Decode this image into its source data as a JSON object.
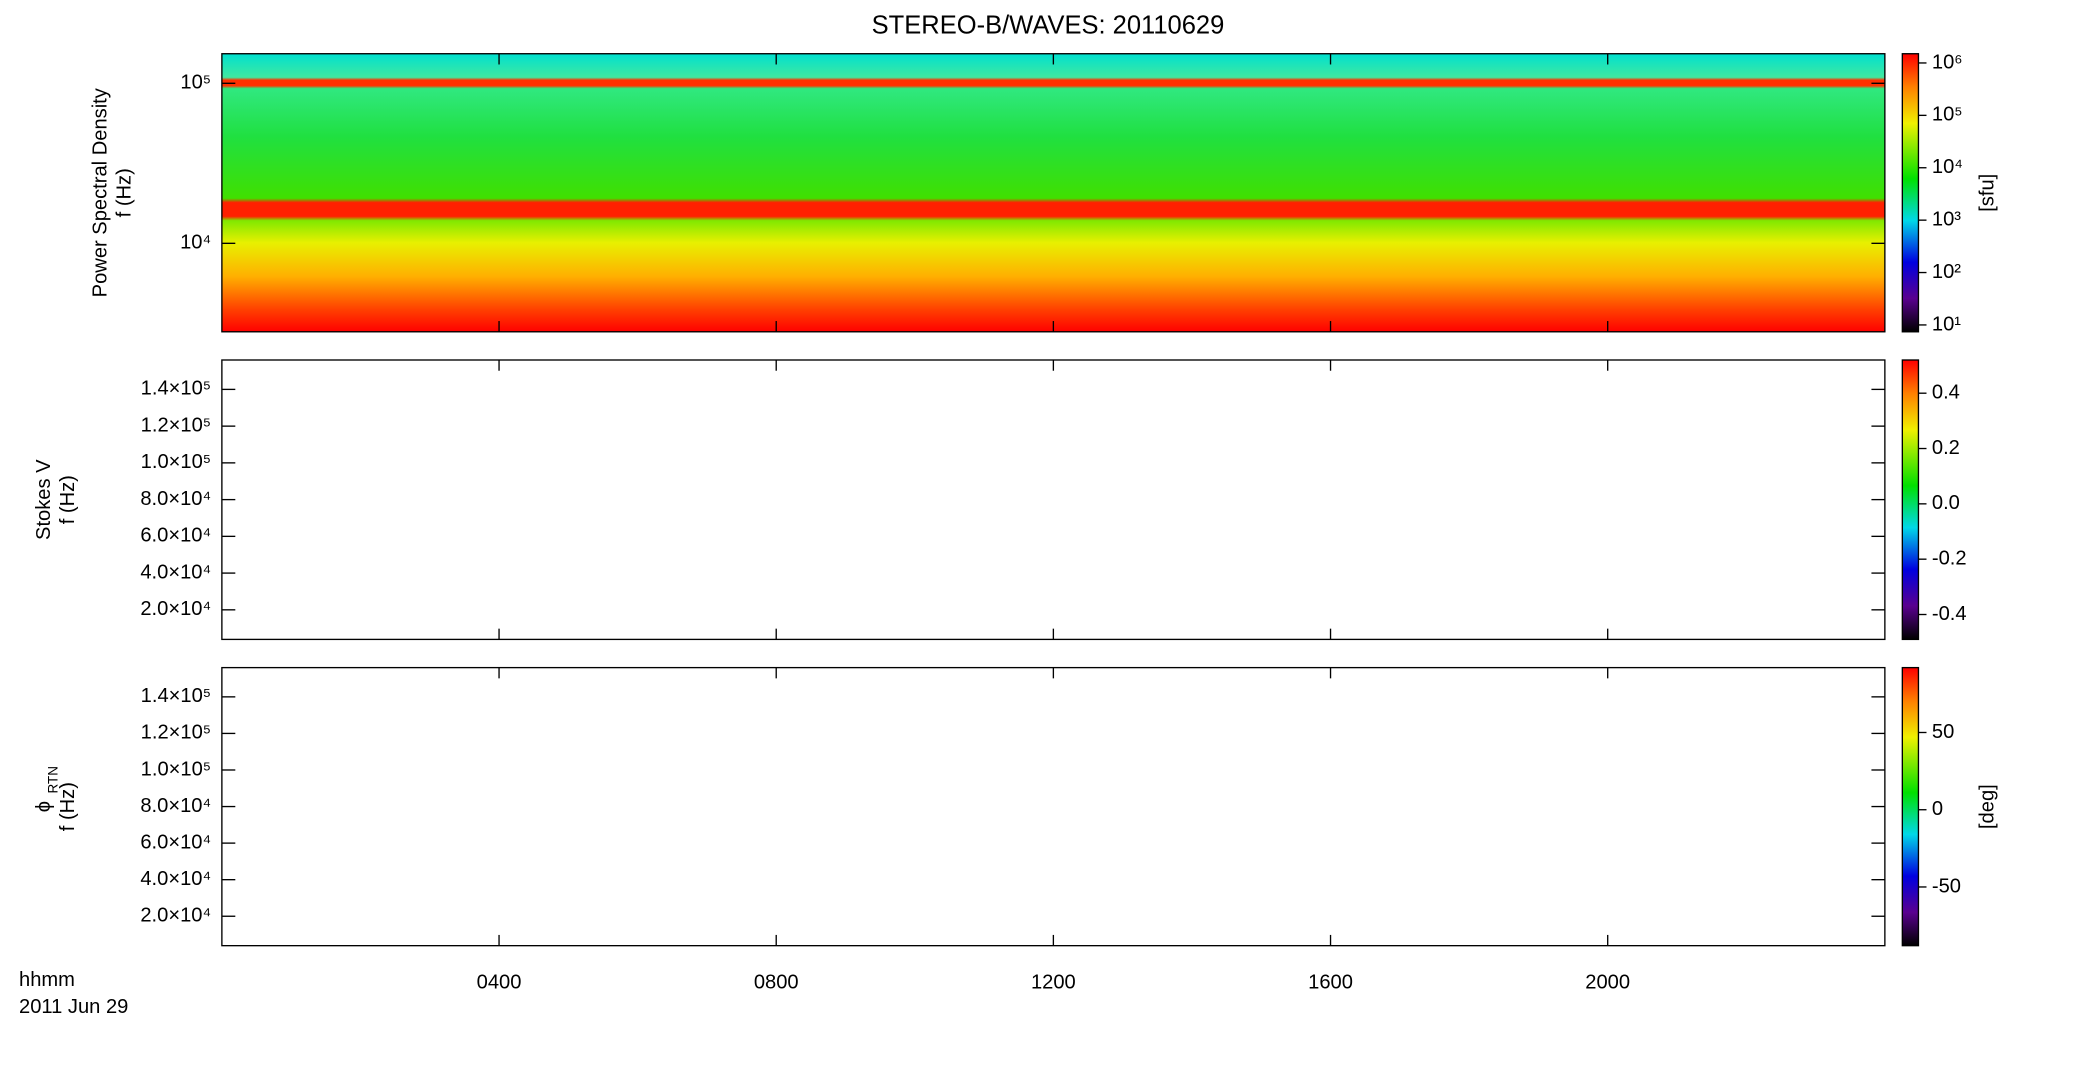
{
  "chart_data": [
    {
      "type": "spectrogram",
      "title": "STEREO-B/WAVES: 20110629",
      "ylabel": [
        "Power Spectral Density",
        "f (Hz)"
      ],
      "log": true,
      "ylim": [
        2800,
        153000
      ],
      "yticks": [
        {
          "value": 10000,
          "label": "10⁴"
        },
        {
          "value": 100000,
          "label": "10⁵"
        }
      ],
      "colorbar": {
        "label": "[sfu]",
        "log": true,
        "lim": [
          7.4,
          1500000
        ],
        "ticks": [
          {
            "value": 10,
            "label": "10¹"
          },
          {
            "value": 100,
            "label": "10²"
          },
          {
            "value": 1000,
            "label": "10³"
          },
          {
            "value": 10000,
            "label": "10⁴"
          },
          {
            "value": 100000,
            "label": "10⁵"
          },
          {
            "value": 1000000,
            "label": "10⁶"
          }
        ]
      }
    },
    {
      "type": "spectrogram",
      "ylabel": [
        "Stokes V",
        "f (Hz)"
      ],
      "log": false,
      "ylim": [
        3900,
        156000
      ],
      "yticks": [
        {
          "value": 20000,
          "label": "2.0×10⁴"
        },
        {
          "value": 40000,
          "label": "4.0×10⁴"
        },
        {
          "value": 60000,
          "label": "6.0×10⁴"
        },
        {
          "value": 80000,
          "label": "8.0×10⁴"
        },
        {
          "value": 100000,
          "label": "1.0×10⁵"
        },
        {
          "value": 120000,
          "label": "1.2×10⁵"
        },
        {
          "value": 140000,
          "label": "1.4×10⁵"
        }
      ],
      "colorbar": {
        "log": false,
        "lim": [
          -0.49,
          0.52
        ],
        "ticks": [
          {
            "value": -0.4,
            "label": "-0.4"
          },
          {
            "value": -0.2,
            "label": "-0.2"
          },
          {
            "value": 0,
            "label": "0.0"
          },
          0.2,
          0.4
        ]
      }
    },
    {
      "type": "spectrogram",
      "ylabel": [
        "ϕ",
        "f (Hz)"
      ],
      "ylabel_subscript": "RTN",
      "log": false,
      "ylim": [
        3900,
        156000
      ],
      "yticks": [
        {
          "value": 20000,
          "label": "2.0×10⁴"
        },
        {
          "value": 40000,
          "label": "4.0×10⁴"
        },
        {
          "value": 60000,
          "label": "6.0×10⁴"
        },
        {
          "value": 80000,
          "label": "8.0×10⁴"
        },
        {
          "value": 100000,
          "label": "1.0×10⁵"
        },
        {
          "value": 120000,
          "label": "1.2×10⁵"
        },
        {
          "value": 140000,
          "label": "1.4×10⁵"
        }
      ],
      "colorbar": {
        "label": "[deg]",
        "log": false,
        "lim": [
          -88,
          92
        ],
        "ticks": [
          -50,
          0,
          50
        ]
      },
      "xlabel": "hhmm",
      "date": "2011 Jun 29",
      "xlim": [
        0,
        24
      ],
      "xticks": [
        {
          "value": 4,
          "label": "0400"
        },
        {
          "value": 8,
          "label": "0800"
        },
        {
          "value": 12,
          "label": "1200"
        },
        {
          "value": 16,
          "label": "1600"
        },
        {
          "value": 20,
          "label": "2000"
        }
      ]
    }
  ]
}
